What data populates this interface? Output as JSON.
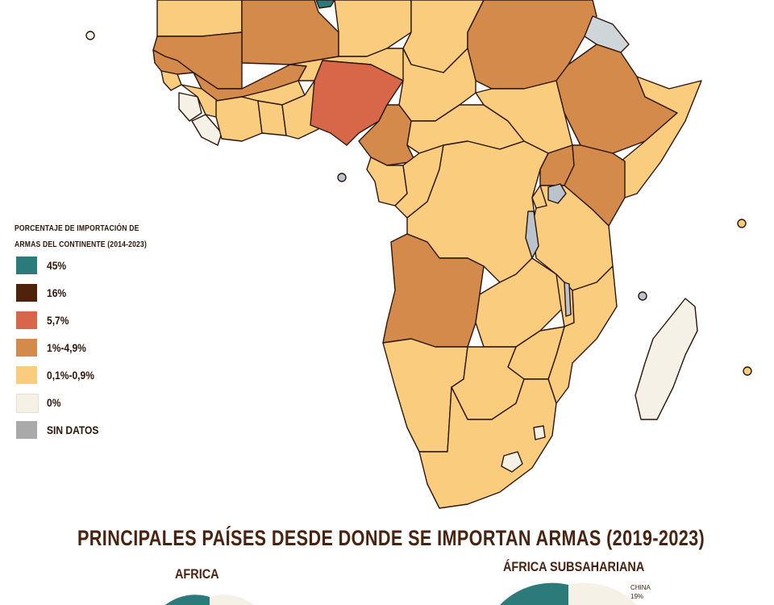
{
  "legend": {
    "title_line1": "PORCENTAJE DE IMPORTACIÓN DE",
    "title_line2": "ARMAS DEL CONTINENTE (2014-2023)",
    "items": [
      {
        "label": "45%",
        "color": "#2d7a7a"
      },
      {
        "label": "16%",
        "color": "#4e220b"
      },
      {
        "label": "5,7%",
        "color": "#d8674a"
      },
      {
        "label": "1%-4,9%",
        "color": "#d48a4a"
      },
      {
        "label": "0,1%-0,9%",
        "color": "#f9cc7e"
      },
      {
        "label": "0%",
        "color": "#f6f1e6"
      },
      {
        "label": "SIN DATOS",
        "color": "#aaaaaa"
      }
    ]
  },
  "section_title": "PRINCIPALES PAÍSES DESDE DONDE SE IMPORTAN ARMAS (2019-2023)",
  "pies": [
    {
      "title": "AFRICA"
    },
    {
      "title": "ÁFRICA SUBSAHARIANA",
      "note_country": "CHINA",
      "note_value": "19%"
    }
  ],
  "colors": {
    "border": "#2b1609",
    "water": "#b9c4cc",
    "title": "#4a2310"
  }
}
